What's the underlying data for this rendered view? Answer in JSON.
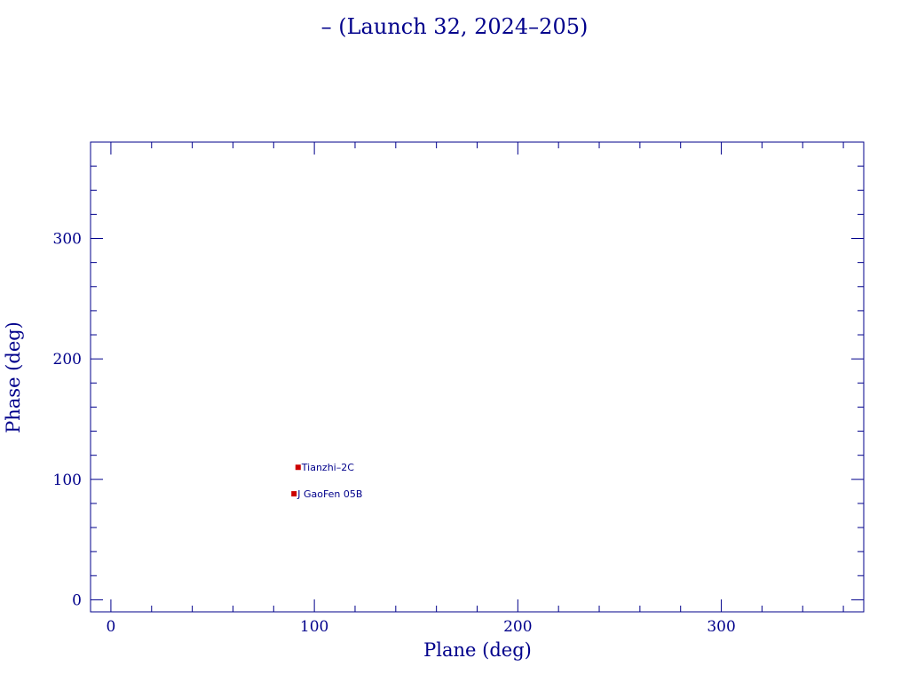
{
  "chart_data": {
    "type": "scatter",
    "title": "– (Launch 32, 2024–205)",
    "xlabel": "Plane (deg)",
    "ylabel": "Phase (deg)",
    "xlim": [
      -10,
      370
    ],
    "ylim": [
      -10,
      380
    ],
    "xticks": [
      0,
      100,
      200,
      300
    ],
    "yticks": [
      0,
      100,
      200,
      300
    ],
    "xtick_labels": [
      "0",
      "100",
      "200",
      "300"
    ],
    "ytick_labels": [
      "0",
      "100",
      "200",
      "300"
    ],
    "grid": false,
    "points": [
      {
        "x": 92,
        "y": 110,
        "label": "Tianzhi–2C"
      },
      {
        "x": 90,
        "y": 88,
        "label": "J GaoFen 05B"
      }
    ]
  },
  "colors": {
    "axis": "#00008b",
    "text": "#00008b",
    "marker": "#cc0000"
  }
}
